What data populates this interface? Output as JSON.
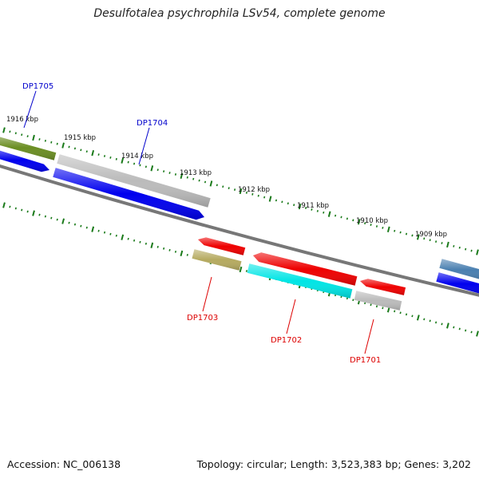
{
  "title": "Desulfotalea psychrophila LSv54, complete genome",
  "footer": {
    "accession": "Accession: NC_006138",
    "summary": "Topology: circular; Length: 3,523,383 bp; Genes: 3,202"
  },
  "colors": {
    "backbone": "#777777",
    "ticks": "#1a7a1a",
    "label_forward": "#0000cc",
    "label_reverse": "#dd0000"
  },
  "scale_labels": [
    {
      "text": "1916 kbp"
    },
    {
      "text": "1915 kbp"
    },
    {
      "text": "1914 kbp"
    },
    {
      "text": "1913 kbp"
    },
    {
      "text": "1912 kbp"
    },
    {
      "text": "1911 kbp"
    },
    {
      "text": "1910 kbp"
    },
    {
      "text": "1909 kbp"
    }
  ],
  "genes": [
    {
      "name": "olive-feature",
      "color": "#6b8e23"
    },
    {
      "name": "blue-feature",
      "color": "#0000ee"
    },
    {
      "name": "grey-feature",
      "color": "#bbbbbb"
    },
    {
      "name": "blue-feature",
      "color": "#0000ee"
    },
    {
      "name": "red-feature",
      "color": "#ee0000"
    },
    {
      "name": "khaki-feature",
      "color": "#b5aa60"
    },
    {
      "name": "red-feature",
      "color": "#ee0000"
    },
    {
      "name": "cyan-feature",
      "color": "#00e5e5"
    },
    {
      "name": "red-feature",
      "color": "#ee0000"
    },
    {
      "name": "grey-feature",
      "color": "#bbbbbb"
    },
    {
      "name": "steelblue-feature",
      "color": "#4a7fb0"
    },
    {
      "name": "blue-feature",
      "color": "#0000ee"
    }
  ],
  "gene_labels": [
    {
      "text": "DP1705",
      "strand": "forward"
    },
    {
      "text": "DP1704",
      "strand": "forward"
    },
    {
      "text": "DP1703",
      "strand": "reverse"
    },
    {
      "text": "DP1702",
      "strand": "reverse"
    },
    {
      "text": "DP1701",
      "strand": "reverse"
    }
  ]
}
